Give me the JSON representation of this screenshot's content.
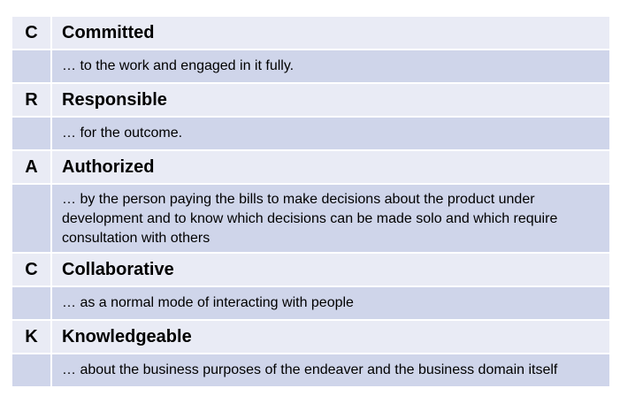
{
  "rows": [
    {
      "letter": "C",
      "word": "Committed",
      "description": "… to the work and engaged in it fully."
    },
    {
      "letter": "R",
      "word": "Responsible",
      "description": "… for the outcome."
    },
    {
      "letter": "A",
      "word": "Authorized",
      "description": "… by the person paying the bills to make decisions about the product under development and to know which decisions can be made solo and which require consultation with others"
    },
    {
      "letter": "C",
      "word": "Collaborative",
      "description": "… as a normal mode of interacting with people"
    },
    {
      "letter": "K",
      "word": "Knowledgeable",
      "description": "… about the business purposes of the endeaver and the business domain itself"
    }
  ],
  "colors": {
    "header_row": "#e9ebf5",
    "description_row": "#cfd5ea"
  }
}
